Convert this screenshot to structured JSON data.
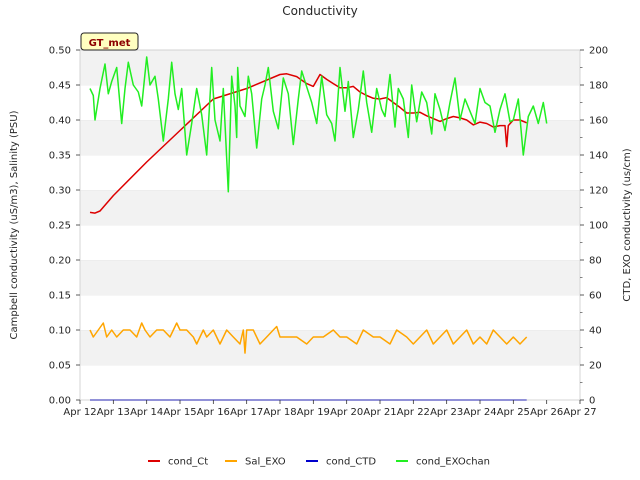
{
  "chart_data": {
    "type": "line",
    "title": "Conductivity",
    "site_badge": "GT_met",
    "ylabel_left": "Campbell conductivity (uS/m3), Salinity (PSU)",
    "ylabel_right": "CTD, EXO conductivity (us/cm)",
    "xlabel": "",
    "x_ticks": [
      "Apr 12",
      "Apr 13",
      "Apr 14",
      "Apr 15",
      "Apr 16",
      "Apr 17",
      "Apr 18",
      "Apr 19",
      "Apr 20",
      "Apr 21",
      "Apr 22",
      "Apr 23",
      "Apr 24",
      "Apr 25",
      "Apr 26",
      "Apr 27"
    ],
    "xlim": [
      12,
      27
    ],
    "ylim_left": [
      0.0,
      0.5
    ],
    "y_ticks_left": [
      "0.00",
      "0.05",
      "0.10",
      "0.15",
      "0.20",
      "0.25",
      "0.30",
      "0.35",
      "0.40",
      "0.45",
      "0.50"
    ],
    "ylim_right": [
      0,
      200
    ],
    "y_ticks_right": [
      "0",
      "20",
      "40",
      "60",
      "80",
      "100",
      "120",
      "140",
      "160",
      "180",
      "200"
    ],
    "grid": "horizontal bands",
    "legend_position": "bottom-center",
    "series": [
      {
        "name": "cond_Ct",
        "color": "#dd0000",
        "axis": "left",
        "x": [
          12.3,
          12.45,
          12.6,
          13.0,
          14.0,
          15.0,
          16.0,
          17.0,
          18.0,
          18.2,
          18.5,
          18.8,
          19.0,
          19.2,
          19.4,
          19.6,
          19.8,
          20.0,
          20.2,
          20.4,
          20.6,
          20.8,
          21.0,
          21.2,
          21.4,
          21.6,
          21.8,
          22.0,
          22.2,
          22.4,
          22.6,
          22.8,
          23.0,
          23.2,
          23.4,
          23.6,
          23.8,
          24.0,
          24.2,
          24.4,
          24.6,
          24.75,
          24.8,
          24.85,
          25.0,
          25.2,
          25.4
        ],
        "values": [
          0.268,
          0.267,
          0.27,
          0.292,
          0.34,
          0.385,
          0.43,
          0.445,
          0.465,
          0.466,
          0.462,
          0.452,
          0.448,
          0.465,
          0.458,
          0.452,
          0.446,
          0.446,
          0.448,
          0.44,
          0.435,
          0.431,
          0.43,
          0.432,
          0.425,
          0.418,
          0.41,
          0.41,
          0.411,
          0.406,
          0.402,
          0.398,
          0.402,
          0.405,
          0.403,
          0.4,
          0.393,
          0.397,
          0.395,
          0.39,
          0.392,
          0.392,
          0.362,
          0.392,
          0.4,
          0.4,
          0.396
        ]
      },
      {
        "name": "Sal_EXO",
        "color": "#ffa500",
        "axis": "left",
        "x": [
          12.3,
          12.4,
          12.55,
          12.7,
          12.8,
          12.95,
          13.1,
          13.3,
          13.5,
          13.7,
          13.85,
          13.95,
          14.1,
          14.3,
          14.5,
          14.7,
          14.9,
          15.0,
          15.2,
          15.4,
          15.5,
          15.7,
          15.8,
          16.0,
          16.2,
          16.4,
          16.6,
          16.8,
          16.9,
          16.95,
          17.0,
          17.2,
          17.4,
          17.6,
          17.8,
          17.9,
          18.0,
          18.2,
          18.5,
          18.8,
          19.0,
          19.3,
          19.6,
          19.8,
          20.0,
          20.3,
          20.5,
          20.8,
          21.0,
          21.3,
          21.5,
          21.8,
          22.0,
          22.2,
          22.4,
          22.6,
          22.8,
          23.0,
          23.2,
          23.4,
          23.6,
          23.8,
          24.0,
          24.2,
          24.4,
          24.6,
          24.8,
          25.0,
          25.2,
          25.4
        ],
        "values": [
          0.1,
          0.09,
          0.1,
          0.11,
          0.09,
          0.1,
          0.09,
          0.1,
          0.1,
          0.09,
          0.11,
          0.1,
          0.09,
          0.1,
          0.1,
          0.09,
          0.11,
          0.1,
          0.1,
          0.09,
          0.08,
          0.1,
          0.09,
          0.1,
          0.08,
          0.1,
          0.09,
          0.08,
          0.1,
          0.067,
          0.1,
          0.1,
          0.08,
          0.09,
          0.1,
          0.105,
          0.09,
          0.09,
          0.09,
          0.08,
          0.09,
          0.09,
          0.1,
          0.09,
          0.09,
          0.08,
          0.1,
          0.09,
          0.09,
          0.08,
          0.1,
          0.09,
          0.08,
          0.09,
          0.1,
          0.08,
          0.09,
          0.1,
          0.08,
          0.09,
          0.1,
          0.08,
          0.09,
          0.08,
          0.1,
          0.09,
          0.08,
          0.09,
          0.08,
          0.09
        ]
      },
      {
        "name": "cond_CTD",
        "color": "#0000cc",
        "axis": "right",
        "x": [
          12.3,
          25.4
        ],
        "values": [
          0,
          0
        ]
      },
      {
        "name": "cond_EXOchan",
        "color": "#22ee22",
        "axis": "right",
        "x": [
          12.3,
          12.4,
          12.45,
          12.6,
          12.75,
          12.85,
          12.95,
          13.1,
          13.25,
          13.35,
          13.45,
          13.6,
          13.75,
          13.85,
          14.0,
          14.1,
          14.25,
          14.35,
          14.5,
          14.65,
          14.75,
          14.85,
          14.95,
          15.05,
          15.2,
          15.35,
          15.5,
          15.65,
          15.8,
          15.95,
          16.05,
          16.2,
          16.3,
          16.45,
          16.55,
          16.65,
          16.7,
          16.73,
          16.8,
          16.95,
          17.05,
          17.15,
          17.3,
          17.45,
          17.55,
          17.65,
          17.8,
          17.95,
          18.1,
          18.25,
          18.4,
          18.55,
          18.65,
          18.8,
          18.95,
          19.1,
          19.25,
          19.4,
          19.55,
          19.65,
          19.8,
          19.95,
          20.05,
          20.2,
          20.35,
          20.5,
          20.6,
          20.75,
          20.9,
          21.05,
          21.15,
          21.3,
          21.45,
          21.55,
          21.7,
          21.85,
          21.95,
          22.1,
          22.25,
          22.4,
          22.55,
          22.65,
          22.8,
          22.95,
          23.1,
          23.25,
          23.4,
          23.55,
          23.7,
          23.85,
          24.0,
          24.15,
          24.3,
          24.45,
          24.6,
          24.75,
          24.9,
          25.0,
          25.15,
          25.3,
          25.45,
          25.6,
          25.75,
          25.9,
          26.0
        ],
        "values": [
          178,
          174,
          160,
          178,
          192,
          175,
          182,
          190,
          158,
          178,
          193,
          180,
          176,
          168,
          196,
          180,
          185,
          172,
          148,
          172,
          193,
          175,
          166,
          178,
          140,
          158,
          178,
          163,
          140,
          190,
          160,
          148,
          178,
          119,
          185,
          168,
          150,
          190,
          168,
          162,
          185,
          175,
          144,
          172,
          180,
          190,
          165,
          155,
          184,
          175,
          146,
          172,
          188,
          179,
          170,
          158,
          185,
          163,
          158,
          148,
          190,
          165,
          182,
          150,
          166,
          188,
          170,
          153,
          178,
          166,
          162,
          186,
          156,
          178,
          172,
          150,
          180,
          159,
          176,
          170,
          152,
          175,
          166,
          154,
          170,
          184,
          160,
          172,
          165,
          158,
          178,
          170,
          168,
          153,
          166,
          175,
          159,
          160,
          172,
          140,
          162,
          168,
          158,
          170,
          158
        ]
      }
    ]
  }
}
